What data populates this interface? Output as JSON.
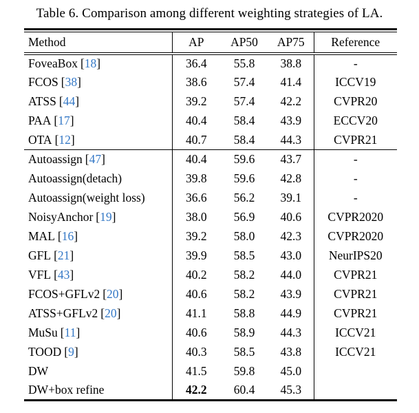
{
  "caption": "Table 6. Comparison among different weighting strategies of LA.",
  "colors": {
    "citation_blue": "#3478c6",
    "text": "#000000",
    "background": "#ffffff"
  },
  "table": {
    "headers": {
      "method": "Method",
      "ap": "AP",
      "ap50": "AP50",
      "ap75": "AP75",
      "reference": "Reference"
    },
    "rows": [
      {
        "method": "FoveaBox",
        "cite": "18",
        "ap": "36.4",
        "ap50": "55.8",
        "ap75": "38.8",
        "reference": "-"
      },
      {
        "method": "FCOS",
        "cite": "38",
        "ap": "38.6",
        "ap50": "57.4",
        "ap75": "41.4",
        "reference": "ICCV19"
      },
      {
        "method": "ATSS",
        "cite": "44",
        "ap": "39.2",
        "ap50": "57.4",
        "ap75": "42.2",
        "reference": "CVPR20"
      },
      {
        "method": "PAA",
        "cite": "17",
        "ap": "40.4",
        "ap50": "58.4",
        "ap75": "43.9",
        "reference": "ECCV20"
      },
      {
        "method": "OTA",
        "cite": "12",
        "ap": "40.7",
        "ap50": "58.4",
        "ap75": "44.3",
        "reference": "CVPR21"
      },
      {
        "method": "Autoassign",
        "cite": "47",
        "ap": "40.4",
        "ap50": "59.6",
        "ap75": "43.7",
        "reference": "-"
      },
      {
        "method": "Autoassign(detach)",
        "cite": "",
        "ap": "39.8",
        "ap50": "59.6",
        "ap75": "42.8",
        "reference": "-"
      },
      {
        "method": "Autoassign(weight loss)",
        "cite": "",
        "ap": "36.6",
        "ap50": "56.2",
        "ap75": "39.1",
        "reference": "-"
      },
      {
        "method": "NoisyAnchor",
        "cite": "19",
        "ap": "38.0",
        "ap50": "56.9",
        "ap75": "40.6",
        "reference": "CVPR2020"
      },
      {
        "method": "MAL",
        "cite": "16",
        "ap": "39.2",
        "ap50": "58.0",
        "ap75": "42.3",
        "reference": "CVPR2020"
      },
      {
        "method": "GFL",
        "cite": "21",
        "ap": "39.9",
        "ap50": "58.5",
        "ap75": "43.0",
        "reference": "NeurIPS20"
      },
      {
        "method": "VFL",
        "cite": "43",
        "ap": "40.2",
        "ap50": "58.2",
        "ap75": "44.0",
        "reference": "CVPR21"
      },
      {
        "method": "FCOS+GFLv2",
        "cite": "20",
        "ap": "40.6",
        "ap50": "58.2",
        "ap75": "43.9",
        "reference": "CVPR21"
      },
      {
        "method": "ATSS+GFLv2",
        "cite": "20",
        "ap": "41.1",
        "ap50": "58.8",
        "ap75": "44.9",
        "reference": "CVPR21"
      },
      {
        "method": "MuSu",
        "cite": "11",
        "ap": "40.6",
        "ap50": "58.9",
        "ap75": "44.3",
        "reference": "ICCV21"
      },
      {
        "method": "TOOD",
        "cite": "9",
        "ap": "40.3",
        "ap50": "58.5",
        "ap75": "43.8",
        "reference": "ICCV21"
      },
      {
        "method": "DW",
        "cite": "",
        "ap": "41.5",
        "ap50": "59.8",
        "ap75": "45.0",
        "reference": ""
      },
      {
        "method": "DW+box refine",
        "cite": "",
        "ap": "42.2",
        "ap_bold": true,
        "ap50": "60.4",
        "ap75": "45.3",
        "reference": ""
      }
    ]
  }
}
